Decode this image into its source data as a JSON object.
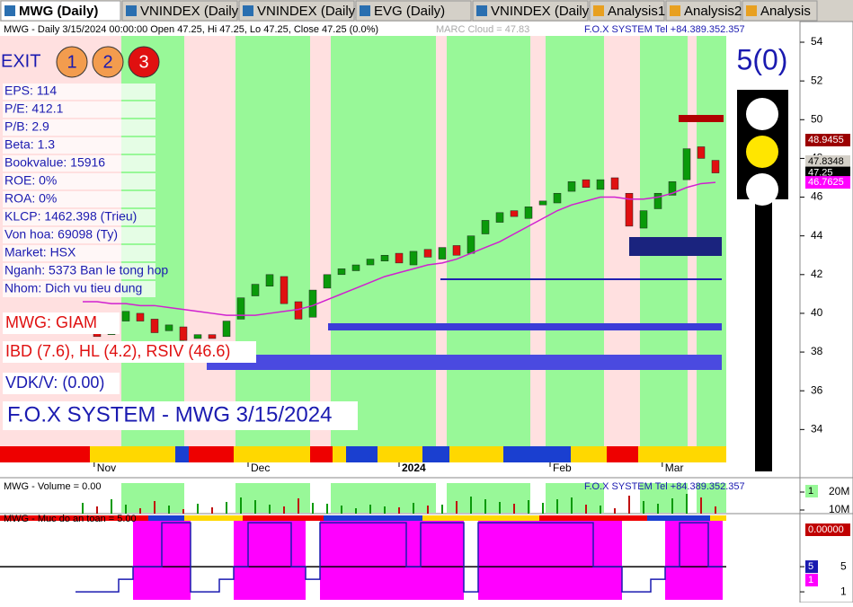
{
  "tabs": [
    "MWG (Daily)",
    "VNINDEX (Daily)",
    "VNINDEX (Daily)",
    "EVG (Daily)",
    "VNINDEX (Daily)",
    "Analysis1",
    "Analysis2",
    "Analysis"
  ],
  "price_panel": {
    "info": "MWG - Daily 3/15/2024 00:00:00 Open 47.25, Hi 47.25, Lo 47.25, Close 47.25 (0.0%)",
    "marc": "MARC Cloud = 47.83",
    "fox": "F.O.X SYSTEM Tel +84.389.352.357",
    "exit": "EXIT",
    "buttons": [
      "1",
      "2",
      "3"
    ],
    "signal": "5(0)",
    "stats": [
      "EPS: 114",
      "P/E: 412.1",
      "P/B: 2.9",
      "Beta: 1.3",
      "Bookvalue: 15916",
      "ROE: 0%",
      "ROA: 0%",
      "KLCP: 1462.398 (Trieu)",
      "Von hoa: 69098 (Ty)",
      "Market: HSX",
      "Nganh: 5373 Ban le tong hop",
      "Nhom: Dich vu tieu dung"
    ],
    "status": [
      "MWG: GIAM",
      "IBD (7.6), HL (4.2), RSIV (46.6)",
      "VDK/V:  (0.00)"
    ],
    "footer_title": "F.O.X SYSTEM - MWG 3/15/2024",
    "ylim": [
      32.3,
      55.16
    ],
    "yticks": [
      34,
      36,
      38,
      40,
      42,
      44,
      46,
      48,
      50,
      52,
      54
    ],
    "x_labels": [
      {
        "value": 0.8,
        "label": "Nov"
      },
      {
        "value": 11.5,
        "label": "Dec"
      },
      {
        "value": 22,
        "label": "2024"
      },
      {
        "value": 32.5,
        "label": "Feb"
      },
      {
        "value": 40.3,
        "label": "Mar"
      }
    ],
    "open": [
      39.0,
      39.3,
      38.9,
      39.6,
      40.0,
      39.7,
      39.1,
      39.3,
      38.7,
      38.9,
      38.8,
      39.7,
      40.9,
      41.4,
      41.9,
      40.6,
      39.8,
      41.3,
      42.0,
      42.2,
      42.5,
      42.7,
      43.1,
      42.5,
      43.3,
      42.8,
      43.5,
      43.1,
      44.1,
      44.7,
      45.3,
      44.9,
      45.6,
      45.7,
      46.3,
      46.9,
      46.4,
      47.0,
      46.2,
      44.4,
      45.4,
      46.1,
      46.9,
      48.6,
      47.9
    ],
    "close": [
      39.2,
      38.8,
      39.5,
      40.1,
      39.6,
      39.0,
      39.4,
      38.6,
      38.9,
      38.7,
      39.6,
      40.8,
      41.5,
      42.0,
      40.5,
      39.7,
      41.2,
      42.0,
      42.3,
      42.5,
      42.8,
      43.0,
      42.6,
      43.2,
      42.9,
      43.4,
      43.0,
      44.0,
      44.8,
      45.2,
      45.0,
      45.5,
      45.8,
      46.2,
      46.8,
      46.5,
      46.9,
      46.4,
      44.5,
      45.3,
      46.2,
      46.8,
      48.5,
      48.0,
      47.25
    ],
    "ma": [
      40.6,
      40.6,
      40.5,
      40.5,
      40.4,
      40.4,
      40.3,
      40.2,
      40.1,
      40.0,
      39.9,
      39.9,
      39.9,
      40.0,
      40.1,
      40.2,
      40.4,
      40.7,
      41.0,
      41.3,
      41.6,
      41.9,
      42.1,
      42.3,
      42.5,
      42.6,
      42.8,
      43.1,
      43.4,
      43.7,
      44.1,
      44.5,
      44.9,
      45.3,
      45.6,
      45.8,
      46.0,
      46.0,
      45.9,
      45.9,
      46.0,
      46.2,
      46.5,
      46.7,
      46.76
    ],
    "right_labels": [
      {
        "value": 48.9455,
        "bg": "#9b0000",
        "fg": "#ffffff"
      },
      {
        "value": 47.8348,
        "bg": "#d4d0c8",
        "fg": "#000000"
      },
      {
        "value": 47.25,
        "bg": "#000000",
        "fg": "#ffffff"
      },
      {
        "value": 46.7625,
        "bg": "#ff00ff",
        "fg": "#ffffff"
      }
    ]
  },
  "volume_panel": {
    "label": "MWG - Volume = 0.00",
    "fox": "F.O.X SYSTEM Tel +84.389.352.357",
    "ylim": [
      8000000,
      26500000
    ],
    "yticks": [
      {
        "value": 10000000,
        "label": "10M"
      },
      {
        "value": 20000000,
        "label": "20M"
      }
    ],
    "values": [
      14000000,
      12000000,
      16000000,
      13000000,
      11000000,
      15000000,
      12500000,
      10500000,
      13500000,
      11500000,
      14500000,
      17000000,
      15500000,
      13000000,
      12000000,
      16500000,
      14000000,
      13500000,
      12500000,
      11000000,
      13000000,
      12000000,
      11500000,
      14000000,
      12500000,
      13000000,
      15000000,
      17500000,
      16000000,
      14500000,
      13500000,
      15500000,
      14000000,
      16000000,
      17000000,
      13000000,
      12500000,
      11000000,
      18000000,
      15000000,
      13500000,
      16500000,
      19000000,
      17000000,
      12000000
    ],
    "right_labels": [
      "1",
      "0.00000"
    ]
  },
  "safety_panel": {
    "label": "MWG - Muc do an toan = 5.00",
    "ylim": [
      -0.7,
      13.3
    ],
    "yticks": [
      1,
      5
    ],
    "values": [
      1,
      1,
      1,
      3,
      5,
      5,
      12,
      12,
      1,
      1,
      3,
      5,
      12,
      12,
      12,
      5,
      3,
      12,
      12,
      12,
      12,
      12,
      12,
      5,
      12,
      12,
      12,
      1,
      12,
      12,
      12,
      12,
      12,
      12,
      12,
      12,
      5,
      5,
      1,
      1,
      3,
      5,
      12,
      12,
      5
    ],
    "right_labels": [
      "5",
      "1"
    ]
  }
}
